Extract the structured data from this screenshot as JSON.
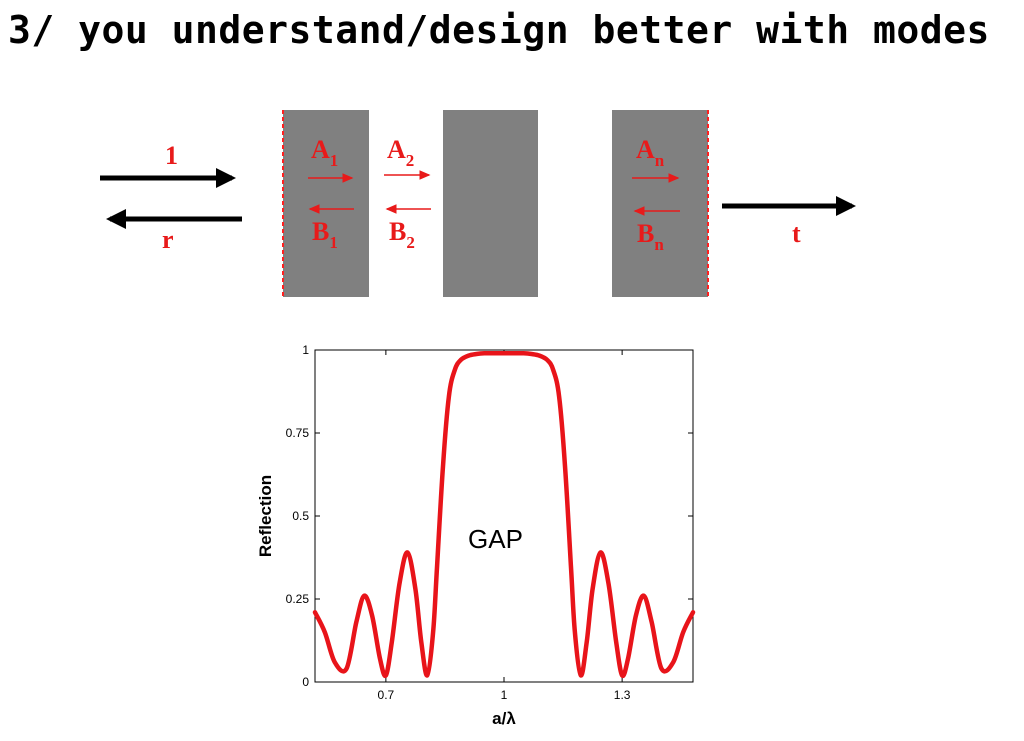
{
  "slide": {
    "title": "3/ you understand/design better with modes"
  },
  "diagram": {
    "incident_label": "1",
    "reflected_label": "r",
    "transmitted_label": "t",
    "modes": [
      {
        "a": "A",
        "a_sub": "1",
        "b": "B",
        "b_sub": "1"
      },
      {
        "a": "A",
        "a_sub": "2",
        "b": "B",
        "b_sub": "2"
      },
      {
        "a": "A",
        "a_sub": "n",
        "b": "B",
        "b_sub": "n"
      }
    ],
    "colors": {
      "slab": "#808080",
      "arrow": "#000000",
      "mode": "#e81a1a"
    }
  },
  "chart_data": {
    "type": "line",
    "xlabel": "a/λ",
    "ylabel": "Reflection",
    "annotation": "GAP",
    "xlim": [
      0.52,
      1.48
    ],
    "ylim": [
      0,
      1
    ],
    "xticks": [
      "0.7",
      "1",
      "1.3"
    ],
    "xtick_values": [
      0.7,
      1.0,
      1.3
    ],
    "yticks": [
      "0",
      "0.25",
      "0.5",
      "0.75",
      "1"
    ],
    "ytick_values": [
      0,
      0.25,
      0.5,
      0.75,
      1
    ],
    "series": [
      {
        "color": "#e8141a",
        "x": [
          0.52,
          0.545,
          0.57,
          0.6,
          0.625,
          0.645,
          0.665,
          0.685,
          0.7,
          0.715,
          0.735,
          0.755,
          0.775,
          0.79,
          0.805,
          0.82,
          0.83,
          0.845,
          0.86,
          0.875,
          0.89,
          0.91,
          0.93,
          0.95,
          0.98,
          1.0,
          1.02,
          1.05,
          1.07,
          1.09,
          1.11,
          1.125,
          1.14,
          1.155,
          1.17,
          1.18,
          1.195,
          1.21,
          1.225,
          1.245,
          1.265,
          1.285,
          1.3,
          1.315,
          1.335,
          1.355,
          1.375,
          1.4,
          1.43,
          1.455,
          1.48
        ],
        "y": [
          0.21,
          0.15,
          0.06,
          0.04,
          0.18,
          0.26,
          0.2,
          0.07,
          0.02,
          0.12,
          0.3,
          0.39,
          0.28,
          0.12,
          0.02,
          0.15,
          0.35,
          0.65,
          0.86,
          0.94,
          0.97,
          0.983,
          0.988,
          0.99,
          0.99,
          0.99,
          0.99,
          0.99,
          0.988,
          0.983,
          0.97,
          0.94,
          0.86,
          0.65,
          0.35,
          0.15,
          0.02,
          0.12,
          0.28,
          0.39,
          0.3,
          0.12,
          0.02,
          0.07,
          0.2,
          0.26,
          0.18,
          0.04,
          0.06,
          0.15,
          0.21
        ]
      }
    ]
  }
}
